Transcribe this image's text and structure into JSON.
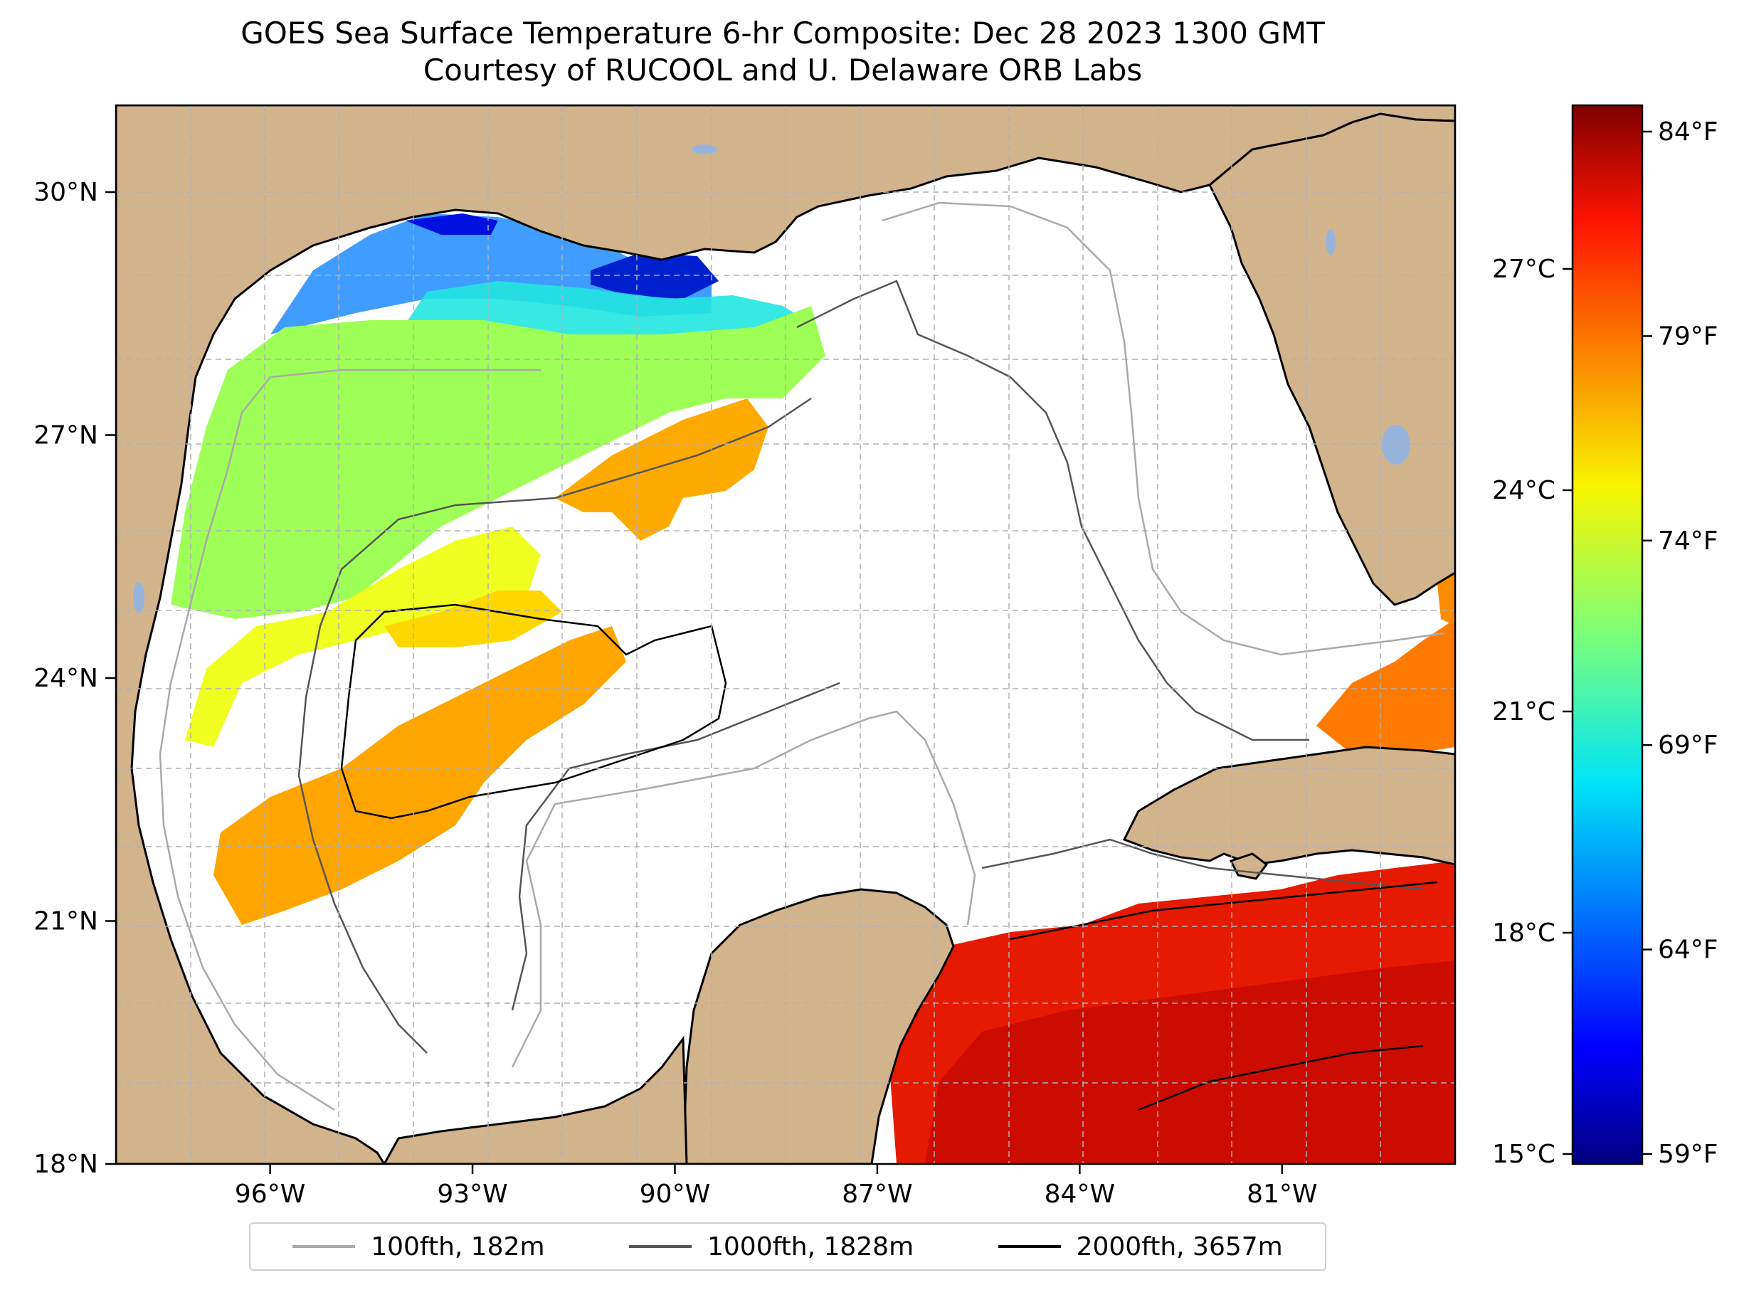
{
  "title": "GOES Sea Surface Temperature 6-hr Composite: Dec 28 2023 1300 GMT",
  "subtitle": "Courtesy of RUCOOL and U. Delaware ORB Labs",
  "colors": {
    "land": "#d2b48c",
    "water": "#ffffff",
    "coast": "#000000",
    "lakes": "#98b4dc"
  },
  "map": {
    "lon_ticks": [
      {
        "value": -96,
        "label": "96°W"
      },
      {
        "value": -93,
        "label": "93°W"
      },
      {
        "value": -90,
        "label": "90°W"
      },
      {
        "value": -87,
        "label": "87°W"
      },
      {
        "value": -84,
        "label": "84°W"
      },
      {
        "value": -81,
        "label": "81°W"
      }
    ],
    "lat_ticks": [
      {
        "value": 18,
        "label": "18°N"
      },
      {
        "value": 21,
        "label": "21°N"
      },
      {
        "value": 24,
        "label": "24°N"
      },
      {
        "value": 27,
        "label": "27°N"
      },
      {
        "value": 30,
        "label": "30°N"
      }
    ]
  },
  "colorbar": {
    "colormap": "jet",
    "celsius_ticks": [
      {
        "value": 15,
        "label": "15°C"
      },
      {
        "value": 18,
        "label": "18°C"
      },
      {
        "value": 21,
        "label": "21°C"
      },
      {
        "value": 24,
        "label": "24°C"
      },
      {
        "value": 27,
        "label": "27°C"
      }
    ],
    "fahrenheit_ticks": [
      {
        "value": 59,
        "label": "59°F"
      },
      {
        "value": 64,
        "label": "64°F"
      },
      {
        "value": 69,
        "label": "69°F"
      },
      {
        "value": 74,
        "label": "74°F"
      },
      {
        "value": 79,
        "label": "79°F"
      },
      {
        "value": 84,
        "label": "84°F"
      }
    ]
  },
  "legend": [
    {
      "label": "100fth, 182m",
      "color": "#a9a9a9"
    },
    {
      "label": "1000fth, 1828m",
      "color": "#555555"
    },
    {
      "label": "2000fth, 3657m",
      "color": "#000000"
    }
  ]
}
